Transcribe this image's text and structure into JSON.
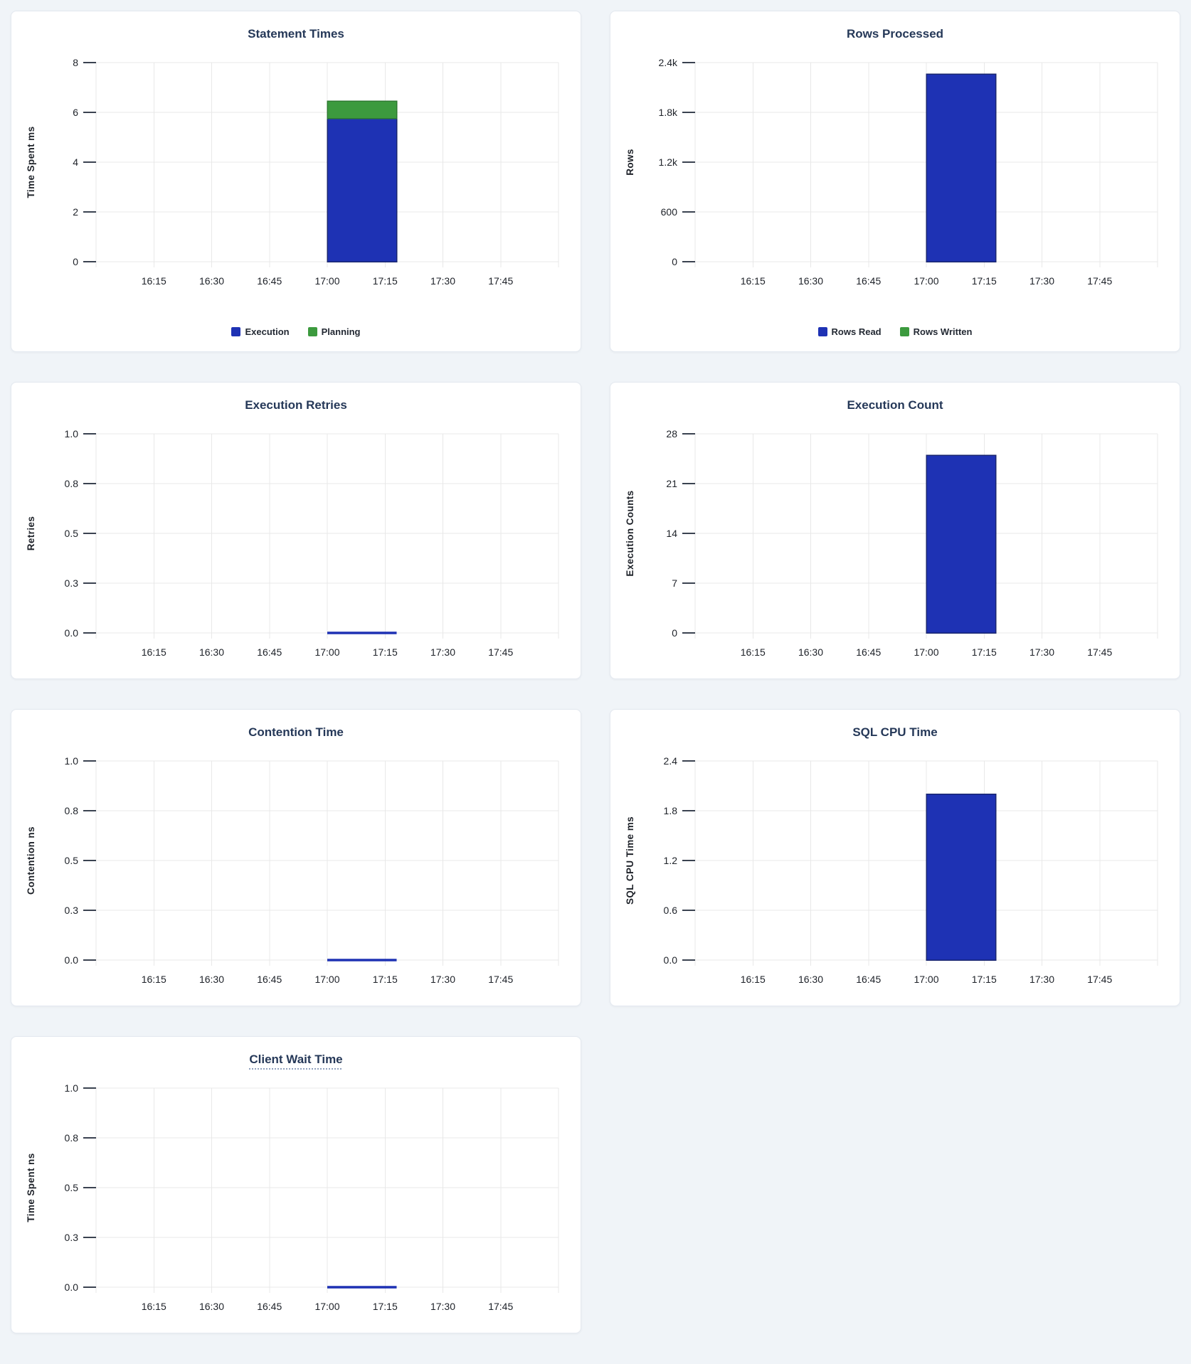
{
  "page": {
    "colors": {
      "background": "#f0f4f8",
      "card_background": "#ffffff",
      "card_border": "#e4e9f0",
      "title": "#253858",
      "gridline": "#e8e8e8",
      "axis_text": "#1d2128",
      "bar_blue": "#1e32b4",
      "bar_green": "#3c9a3e"
    }
  },
  "chart_data": [
    {
      "id": "statement-times",
      "type": "bar",
      "title": "Statement Times",
      "title_tooltip": false,
      "ylabel": "Time Spent ms",
      "ymax": 8,
      "yticks": [
        {
          "label": "0",
          "value": 0
        },
        {
          "label": "2",
          "value": 2
        },
        {
          "label": "4",
          "value": 4
        },
        {
          "label": "6",
          "value": 6
        },
        {
          "label": "8",
          "value": 8
        }
      ],
      "x_domain": [
        "16:00",
        "18:00"
      ],
      "xticks": [
        "16:15",
        "16:30",
        "16:45",
        "17:00",
        "17:15",
        "17:30",
        "17:45"
      ],
      "grid": true,
      "bar_window": {
        "start": "17:00",
        "end": "17:18"
      },
      "series": [
        {
          "name": "Execution",
          "color": "#1e32b4",
          "stroke": "#18256f",
          "value": 5.75
        },
        {
          "name": "Planning",
          "color": "#3c9a3e",
          "stroke": "#2e7a30",
          "value": 0.7
        }
      ],
      "legend": [
        {
          "label": "Execution",
          "color": "#1e32b4"
        },
        {
          "label": "Planning",
          "color": "#3c9a3e"
        }
      ],
      "legend_position": "bottom-center"
    },
    {
      "id": "rows-processed",
      "type": "bar",
      "title": "Rows Processed",
      "title_tooltip": false,
      "ylabel": "Rows",
      "ymax": 2400,
      "yticks": [
        {
          "label": "0",
          "value": 0
        },
        {
          "label": "600",
          "value": 600
        },
        {
          "label": "1.2k",
          "value": 1200
        },
        {
          "label": "1.8k",
          "value": 1800
        },
        {
          "label": "2.4k",
          "value": 2400
        }
      ],
      "x_domain": [
        "16:00",
        "18:00"
      ],
      "xticks": [
        "16:15",
        "16:30",
        "16:45",
        "17:00",
        "17:15",
        "17:30",
        "17:45"
      ],
      "grid": true,
      "bar_window": {
        "start": "17:00",
        "end": "17:18"
      },
      "series": [
        {
          "name": "Rows Read",
          "color": "#1e32b4",
          "stroke": "#18256f",
          "value": 2260
        },
        {
          "name": "Rows Written",
          "color": "#3c9a3e",
          "stroke": "#2e7a30",
          "value": 0
        }
      ],
      "legend": [
        {
          "label": "Rows Read",
          "color": "#1e32b4"
        },
        {
          "label": "Rows Written",
          "color": "#3c9a3e"
        }
      ],
      "legend_position": "bottom-center"
    },
    {
      "id": "execution-retries",
      "type": "line",
      "title": "Execution Retries",
      "title_tooltip": false,
      "ylabel": "Retries",
      "ymax": 1.0,
      "yticks": [
        {
          "label": "0.0",
          "value": 0
        },
        {
          "label": "0.3",
          "value": 0.25
        },
        {
          "label": "0.5",
          "value": 0.5
        },
        {
          "label": "0.8",
          "value": 0.75
        },
        {
          "label": "1.0",
          "value": 1.0
        }
      ],
      "x_domain": [
        "16:00",
        "18:00"
      ],
      "xticks": [
        "16:15",
        "16:30",
        "16:45",
        "17:00",
        "17:15",
        "17:30",
        "17:45"
      ],
      "grid": true,
      "line_window": {
        "start": "17:00",
        "end": "17:18"
      },
      "series": [
        {
          "name": "Retries",
          "color": "#1e32b4",
          "value": 0
        }
      ],
      "legend": []
    },
    {
      "id": "execution-count",
      "type": "bar",
      "title": "Execution Count",
      "title_tooltip": false,
      "ylabel": "Execution Counts",
      "ymax": 28,
      "yticks": [
        {
          "label": "0",
          "value": 0
        },
        {
          "label": "7",
          "value": 7
        },
        {
          "label": "14",
          "value": 14
        },
        {
          "label": "21",
          "value": 21
        },
        {
          "label": "28",
          "value": 28
        }
      ],
      "x_domain": [
        "16:00",
        "18:00"
      ],
      "xticks": [
        "16:15",
        "16:30",
        "16:45",
        "17:00",
        "17:15",
        "17:30",
        "17:45"
      ],
      "grid": true,
      "bar_window": {
        "start": "17:00",
        "end": "17:18"
      },
      "series": [
        {
          "name": "Execution Count",
          "color": "#1e32b4",
          "stroke": "#18256f",
          "value": 25
        }
      ],
      "legend": []
    },
    {
      "id": "contention-time",
      "type": "line",
      "title": "Contention Time",
      "title_tooltip": false,
      "ylabel": "Contention ns",
      "ymax": 1.0,
      "yticks": [
        {
          "label": "0.0",
          "value": 0
        },
        {
          "label": "0.3",
          "value": 0.25
        },
        {
          "label": "0.5",
          "value": 0.5
        },
        {
          "label": "0.8",
          "value": 0.75
        },
        {
          "label": "1.0",
          "value": 1.0
        }
      ],
      "x_domain": [
        "16:00",
        "18:00"
      ],
      "xticks": [
        "16:15",
        "16:30",
        "16:45",
        "17:00",
        "17:15",
        "17:30",
        "17:45"
      ],
      "grid": true,
      "line_window": {
        "start": "17:00",
        "end": "17:18"
      },
      "series": [
        {
          "name": "Contention",
          "color": "#1e32b4",
          "value": 0
        }
      ],
      "legend": []
    },
    {
      "id": "sql-cpu-time",
      "type": "bar",
      "title": "SQL CPU Time",
      "title_tooltip": false,
      "ylabel": "SQL CPU Time ms",
      "ymax": 2.4,
      "yticks": [
        {
          "label": "0.0",
          "value": 0
        },
        {
          "label": "0.6",
          "value": 0.6
        },
        {
          "label": "1.2",
          "value": 1.2
        },
        {
          "label": "1.8",
          "value": 1.8
        },
        {
          "label": "2.4",
          "value": 2.4
        }
      ],
      "x_domain": [
        "16:00",
        "18:00"
      ],
      "xticks": [
        "16:15",
        "16:30",
        "16:45",
        "17:00",
        "17:15",
        "17:30",
        "17:45"
      ],
      "grid": true,
      "bar_window": {
        "start": "17:00",
        "end": "17:18"
      },
      "series": [
        {
          "name": "SQL CPU Time",
          "color": "#1e32b4",
          "stroke": "#18256f",
          "value": 2.0
        }
      ],
      "legend": []
    },
    {
      "id": "client-wait-time",
      "type": "line",
      "title": "Client Wait Time",
      "title_tooltip": true,
      "ylabel": "Time Spent ns",
      "ymax": 1.0,
      "yticks": [
        {
          "label": "0.0",
          "value": 0
        },
        {
          "label": "0.3",
          "value": 0.25
        },
        {
          "label": "0.5",
          "value": 0.5
        },
        {
          "label": "0.8",
          "value": 0.75
        },
        {
          "label": "1.0",
          "value": 1.0
        }
      ],
      "x_domain": [
        "16:00",
        "18:00"
      ],
      "xticks": [
        "16:15",
        "16:30",
        "16:45",
        "17:00",
        "17:15",
        "17:30",
        "17:45"
      ],
      "grid": true,
      "line_window": {
        "start": "17:00",
        "end": "17:18"
      },
      "series": [
        {
          "name": "Client Wait",
          "color": "#1e32b4",
          "value": 0
        }
      ],
      "legend": []
    }
  ]
}
